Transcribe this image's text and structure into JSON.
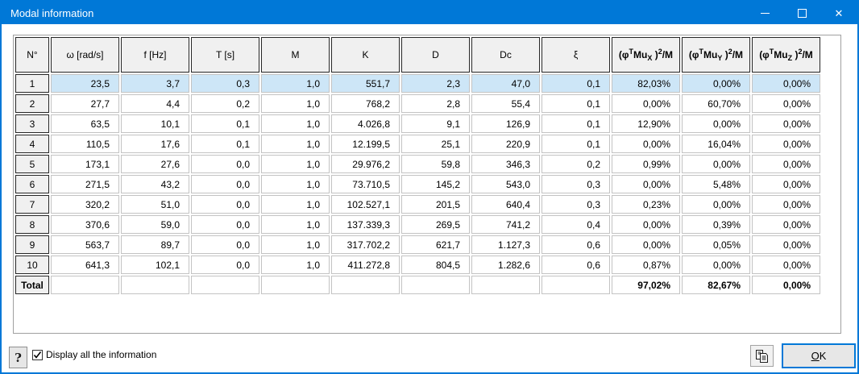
{
  "window": {
    "title": "Modal information",
    "close_glyph": "✕"
  },
  "colors": {
    "accent": "#0078d7",
    "titlebar": "#0078d7",
    "selected_row": "#cde6f7",
    "header_bg": "#f0f0f0"
  },
  "table": {
    "columns": [
      {
        "bold": false,
        "segments": [
          [
            "N°"
          ]
        ]
      },
      {
        "bold": false,
        "segments": [
          [
            "ω [rad/s]"
          ]
        ]
      },
      {
        "bold": false,
        "segments": [
          [
            "f [Hz]"
          ]
        ]
      },
      {
        "bold": false,
        "segments": [
          [
            "T [s]"
          ]
        ]
      },
      {
        "bold": false,
        "segments": [
          [
            "M"
          ]
        ]
      },
      {
        "bold": false,
        "segments": [
          [
            "K"
          ]
        ]
      },
      {
        "bold": false,
        "segments": [
          [
            "D"
          ]
        ]
      },
      {
        "bold": false,
        "segments": [
          [
            "Dc"
          ]
        ]
      },
      {
        "bold": false,
        "segments": [
          [
            "ξ"
          ]
        ]
      },
      {
        "bold": true,
        "segments": [
          [
            "(φ"
          ],
          [
            "T",
            "sup"
          ],
          [
            "Mu"
          ],
          [
            "X",
            "sub"
          ],
          [
            " )"
          ],
          [
            "2",
            "sup"
          ],
          [
            "/M"
          ]
        ]
      },
      {
        "bold": true,
        "segments": [
          [
            "(φ"
          ],
          [
            "T",
            "sup"
          ],
          [
            "Mu"
          ],
          [
            "Y",
            "sub"
          ],
          [
            " )"
          ],
          [
            "2",
            "sup"
          ],
          [
            "/M"
          ]
        ]
      },
      {
        "bold": true,
        "segments": [
          [
            "(φ"
          ],
          [
            "T",
            "sup"
          ],
          [
            "Mu"
          ],
          [
            "Z",
            "sub"
          ],
          [
            " )"
          ],
          [
            "2",
            "sup"
          ],
          [
            "/M"
          ]
        ]
      }
    ],
    "selected_row": 0,
    "rows": [
      [
        "1",
        "23,5",
        "3,7",
        "0,3",
        "1,0",
        "551,7",
        "2,3",
        "47,0",
        "0,1",
        "82,03%",
        "0,00%",
        "0,00%"
      ],
      [
        "2",
        "27,7",
        "4,4",
        "0,2",
        "1,0",
        "768,2",
        "2,8",
        "55,4",
        "0,1",
        "0,00%",
        "60,70%",
        "0,00%"
      ],
      [
        "3",
        "63,5",
        "10,1",
        "0,1",
        "1,0",
        "4.026,8",
        "9,1",
        "126,9",
        "0,1",
        "12,90%",
        "0,00%",
        "0,00%"
      ],
      [
        "4",
        "110,5",
        "17,6",
        "0,1",
        "1,0",
        "12.199,5",
        "25,1",
        "220,9",
        "0,1",
        "0,00%",
        "16,04%",
        "0,00%"
      ],
      [
        "5",
        "173,1",
        "27,6",
        "0,0",
        "1,0",
        "29.976,2",
        "59,8",
        "346,3",
        "0,2",
        "0,99%",
        "0,00%",
        "0,00%"
      ],
      [
        "6",
        "271,5",
        "43,2",
        "0,0",
        "1,0",
        "73.710,5",
        "145,2",
        "543,0",
        "0,3",
        "0,00%",
        "5,48%",
        "0,00%"
      ],
      [
        "7",
        "320,2",
        "51,0",
        "0,0",
        "1,0",
        "102.527,1",
        "201,5",
        "640,4",
        "0,3",
        "0,23%",
        "0,00%",
        "0,00%"
      ],
      [
        "8",
        "370,6",
        "59,0",
        "0,0",
        "1,0",
        "137.339,3",
        "269,5",
        "741,2",
        "0,4",
        "0,00%",
        "0,39%",
        "0,00%"
      ],
      [
        "9",
        "563,7",
        "89,7",
        "0,0",
        "1,0",
        "317.702,2",
        "621,7",
        "1.127,3",
        "0,6",
        "0,00%",
        "0,05%",
        "0,00%"
      ],
      [
        "10",
        "641,3",
        "102,1",
        "0,0",
        "1,0",
        "411.272,8",
        "804,5",
        "1.282,6",
        "0,6",
        "0,87%",
        "0,00%",
        "0,00%"
      ]
    ],
    "total_row": [
      "Total",
      "",
      "",
      "",
      "",
      "",
      "",
      "",
      "",
      "97,02%",
      "82,67%",
      "0,00%"
    ]
  },
  "footer": {
    "help_label": "?",
    "checkbox_label": "Display all the information",
    "checkbox_checked": true,
    "copy_icon": "copy-pages-icon",
    "ok_accel": "O",
    "ok_rest": "K"
  }
}
